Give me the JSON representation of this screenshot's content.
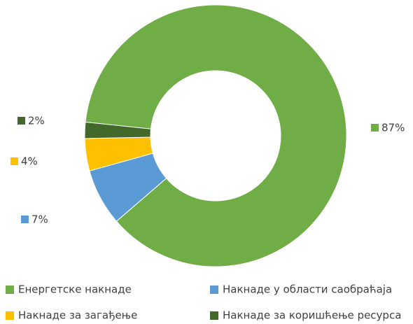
{
  "chart_data": {
    "type": "donut",
    "categories": [
      "Енергетске накнаде",
      "Накнаде у области саобраћаја",
      "Накнаде за загађење",
      "Накнаде за коришћење ресурса"
    ],
    "values": [
      87,
      7,
      4,
      2
    ],
    "value_labels": [
      "87%",
      "7%",
      "4%",
      "2%"
    ],
    "colors": [
      "#70ad47",
      "#5b9bd5",
      "#ffc000",
      "#43682b"
    ],
    "legend": "bottom"
  }
}
